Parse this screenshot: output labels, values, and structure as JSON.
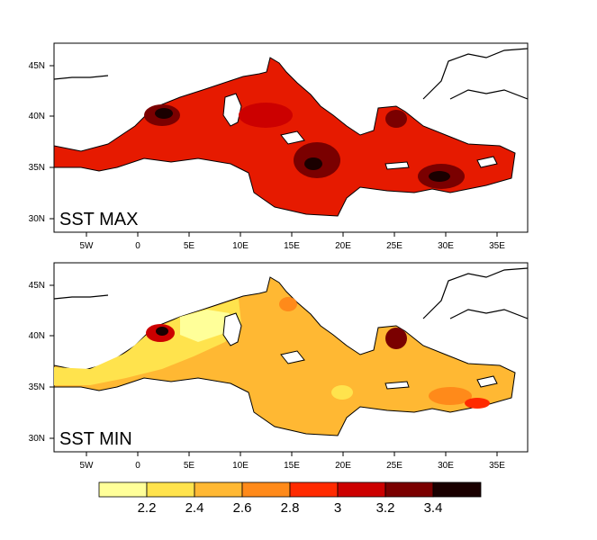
{
  "panels": [
    {
      "id": "max",
      "title": "SST MAX",
      "lat_labels": [
        "45N",
        "40N",
        "35N",
        "30N"
      ],
      "lon_labels": [
        "5W",
        "0",
        "5E",
        "10E",
        "15E",
        "20E",
        "25E",
        "30E",
        "35E"
      ]
    },
    {
      "id": "min",
      "title": "SST MIN",
      "lat_labels": [
        "45N",
        "40N",
        "35N",
        "30N"
      ],
      "lon_labels": [
        "5W",
        "0",
        "5E",
        "10E",
        "15E",
        "20E",
        "25E",
        "30E",
        "35E"
      ]
    }
  ],
  "colorbar": {
    "labels": [
      "2.2",
      "2.4",
      "2.6",
      "2.8",
      "3",
      "3.2",
      "3.4"
    ],
    "colors": [
      "#ffff99",
      "#ffe34d",
      "#ffb833",
      "#ff8a1a",
      "#ff2a00",
      "#cc0000",
      "#7a0000",
      "#1a0000"
    ]
  }
}
